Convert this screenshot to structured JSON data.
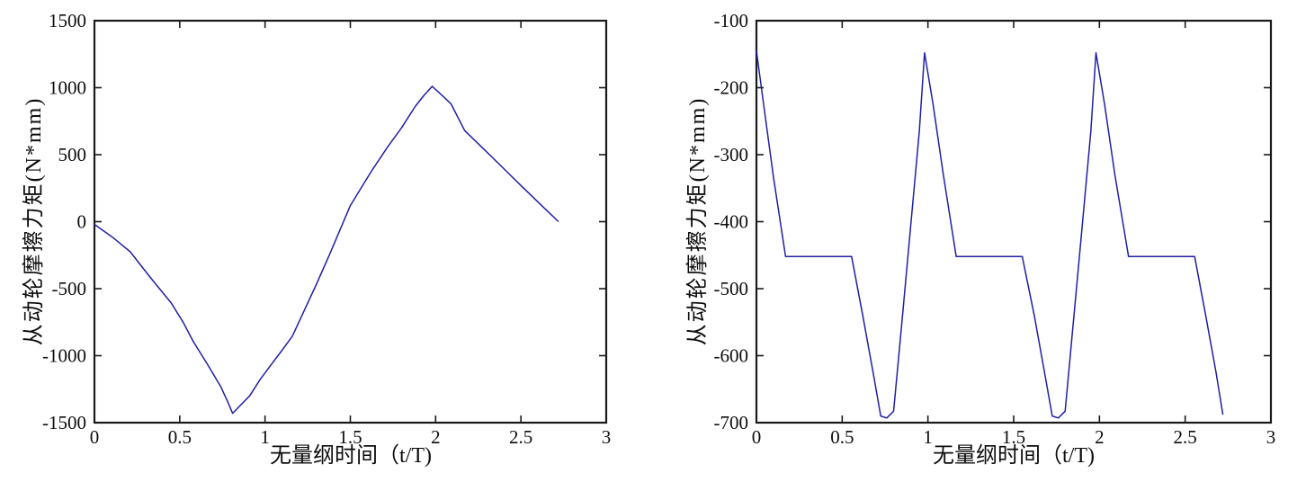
{
  "figure": {
    "background": "#ffffff",
    "axis_color": "#1a1a1a",
    "tick_label_color": "#0d0d0d",
    "layout": "two side-by-side subplots"
  },
  "chart_data": [
    {
      "type": "line",
      "title": "",
      "xlabel": "无量纲时间（t/T)",
      "ylabel": "从动轮摩擦力矩(N*mm)",
      "xlim": [
        0,
        3
      ],
      "ylim": [
        -1500,
        1500
      ],
      "x_ticks": [
        0,
        0.5,
        1,
        1.5,
        2,
        2.5,
        3
      ],
      "y_ticks": [
        -1500,
        -1000,
        -500,
        0,
        500,
        1000,
        1500
      ],
      "grid": false,
      "legend": null,
      "line_color": "#1f1fa8",
      "series": [
        {
          "name": "从动轮摩擦力矩",
          "x": [
            0,
            0.11,
            0.21,
            0.33,
            0.45,
            0.52,
            0.58,
            0.66,
            0.74,
            0.78,
            0.81,
            0.86,
            0.91,
            0.97,
            1.04,
            1.1,
            1.16,
            1.22,
            1.3,
            1.38,
            1.44,
            1.5,
            1.56,
            1.63,
            1.72,
            1.8,
            1.88,
            1.93,
            1.98,
            2.04,
            2.09,
            2.17,
            2.28,
            2.4,
            2.5,
            2.61,
            2.72
          ],
          "y": [
            -20,
            -120,
            -225,
            -420,
            -607,
            -750,
            -896,
            -1060,
            -1231,
            -1340,
            -1430,
            -1365,
            -1300,
            -1180,
            -1060,
            -960,
            -855,
            -690,
            -470,
            -240,
            -60,
            120,
            245,
            390,
            560,
            700,
            860,
            940,
            1010,
            940,
            880,
            680,
            545,
            395,
            270,
            135,
            0
          ]
        }
      ]
    },
    {
      "type": "line",
      "title": "",
      "xlabel": "无量纲时间（t/T)",
      "ylabel": "从动轮摩擦力矩(N*mm)",
      "xlim": [
        0,
        3
      ],
      "ylim": [
        -700,
        -100
      ],
      "x_ticks": [
        0,
        0.5,
        1,
        1.5,
        2,
        2.5,
        3
      ],
      "y_ticks": [
        -700,
        -600,
        -500,
        -400,
        -300,
        -200,
        -100
      ],
      "grid": false,
      "legend": null,
      "line_color": "#1f1fa8",
      "series": [
        {
          "name": "从动轮摩擦力矩",
          "x": [
            0,
            0.05,
            0.1,
            0.17,
            0.3,
            0.45,
            0.555,
            0.62,
            0.68,
            0.725,
            0.76,
            0.8,
            0.85,
            0.9,
            0.95,
            0.98,
            1.03,
            1.09,
            1.165,
            1.3,
            1.45,
            1.55,
            1.62,
            1.68,
            1.725,
            1.76,
            1.8,
            1.85,
            1.9,
            1.95,
            1.98,
            2.03,
            2.09,
            2.17,
            2.3,
            2.45,
            2.555,
            2.62,
            2.68,
            2.72
          ],
          "y": [
            -145,
            -240,
            -335,
            -452,
            -452,
            -452,
            -452,
            -540,
            -625,
            -690,
            -693,
            -683,
            -545,
            -405,
            -265,
            -148,
            -225,
            -330,
            -452,
            -452,
            -452,
            -452,
            -540,
            -625,
            -690,
            -693,
            -683,
            -545,
            -405,
            -265,
            -148,
            -225,
            -330,
            -452,
            -452,
            -452,
            -452,
            -540,
            -625,
            -688
          ]
        }
      ]
    }
  ]
}
